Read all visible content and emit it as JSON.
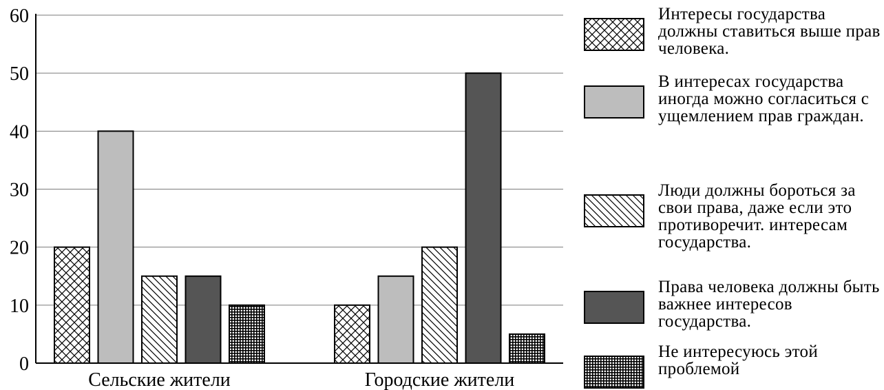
{
  "chart_data": {
    "type": "bar",
    "title": "",
    "xlabel": "",
    "ylabel": "",
    "ylim": [
      0,
      60
    ],
    "yticks": [
      0,
      10,
      20,
      30,
      40,
      50,
      60
    ],
    "grid": true,
    "legend_position": "right",
    "categories": [
      "Сельские жители",
      "Городские жители"
    ],
    "series": [
      {
        "name": "Интересы государства должны ставиться выше прав человека.",
        "pattern": "crosshatch",
        "fill": "#ffffff",
        "values": [
          20,
          10
        ]
      },
      {
        "name": "В интересах государства иногда можно согласиться с ущемлением прав граждан.",
        "pattern": "solid",
        "fill": "#bdbdbd",
        "values": [
          40,
          15
        ]
      },
      {
        "name": "Люди должны бороться за свои права, даже если это противоречит. интересам государства.",
        "pattern": "diagonal",
        "fill": "#ffffff",
        "values": [
          15,
          20
        ]
      },
      {
        "name": "Права человека должны быть важнее интересов государства.",
        "pattern": "solid",
        "fill": "#555555",
        "values": [
          15,
          50
        ]
      },
      {
        "name": "Не интересуюсь этой проблемой",
        "pattern": "grid",
        "fill": "#ffffff",
        "values": [
          10,
          5
        ]
      }
    ]
  }
}
